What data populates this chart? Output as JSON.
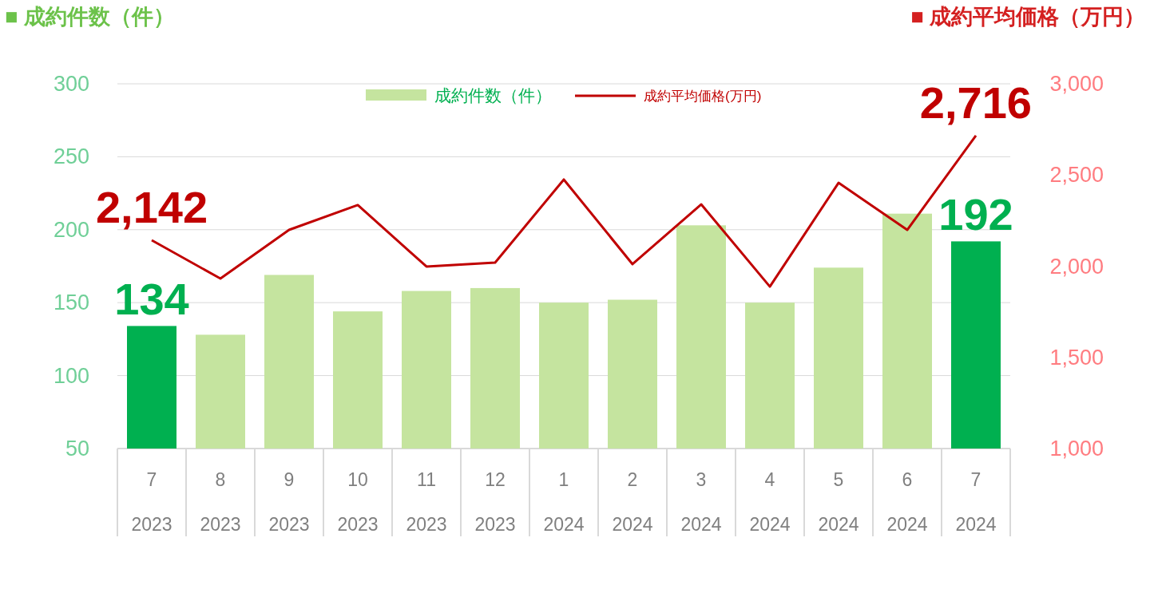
{
  "chart_data": {
    "type": "bar",
    "ylabel": "■ 成約件数（件）",
    "y2label": "■ 成約平均価格（万円）",
    "categories": [
      "7\n2023",
      "8\n2023",
      "9\n2023",
      "10\n2023",
      "11\n2023",
      "12\n2023",
      "1\n2024",
      "2\n2024",
      "3\n2024",
      "4\n2024",
      "5\n2024",
      "6\n2024",
      "7\n2024"
    ],
    "ylim": [
      50,
      300
    ],
    "yticks": [
      50,
      100,
      150,
      200,
      250,
      300
    ],
    "y2lim": [
      1000,
      3000
    ],
    "y2ticks": [
      {
        "value": 1000,
        "label": "1,000"
      },
      {
        "value": 1500,
        "label": "1,500"
      },
      {
        "value": 2000,
        "label": "2,000"
      },
      {
        "value": 2500,
        "label": "2,500"
      },
      {
        "value": 3000,
        "label": "3,000"
      }
    ],
    "grid": "y",
    "legend": "top",
    "series": [
      {
        "name": "成約件数（件）",
        "color": "#c5e49f",
        "colors": [
          "#00b050",
          "#c5e49f",
          "#c5e49f",
          "#c5e49f",
          "#c5e49f",
          "#c5e49f",
          "#c5e49f",
          "#c5e49f",
          "#c5e49f",
          "#c5e49f",
          "#c5e49f",
          "#c5e49f",
          "#00b050"
        ],
        "values": [
          134,
          128,
          169,
          144,
          158,
          160,
          150,
          152,
          203,
          150,
          174,
          211,
          192
        ],
        "value_labels": [
          "134",
          null,
          null,
          null,
          null,
          null,
          null,
          null,
          null,
          null,
          null,
          null,
          "192"
        ]
      },
      {
        "type": "line",
        "axis": "y2",
        "name": "成約平均価格(万円)",
        "color": "#c00000",
        "values": [
          2142,
          1932,
          2199,
          2335,
          1998,
          2020,
          2475,
          2011,
          2339,
          1888,
          2457,
          2199,
          2716
        ],
        "value_labels": [
          "2,142",
          null,
          null,
          null,
          null,
          null,
          null,
          null,
          null,
          null,
          null,
          null,
          "2,716"
        ]
      }
    ]
  }
}
